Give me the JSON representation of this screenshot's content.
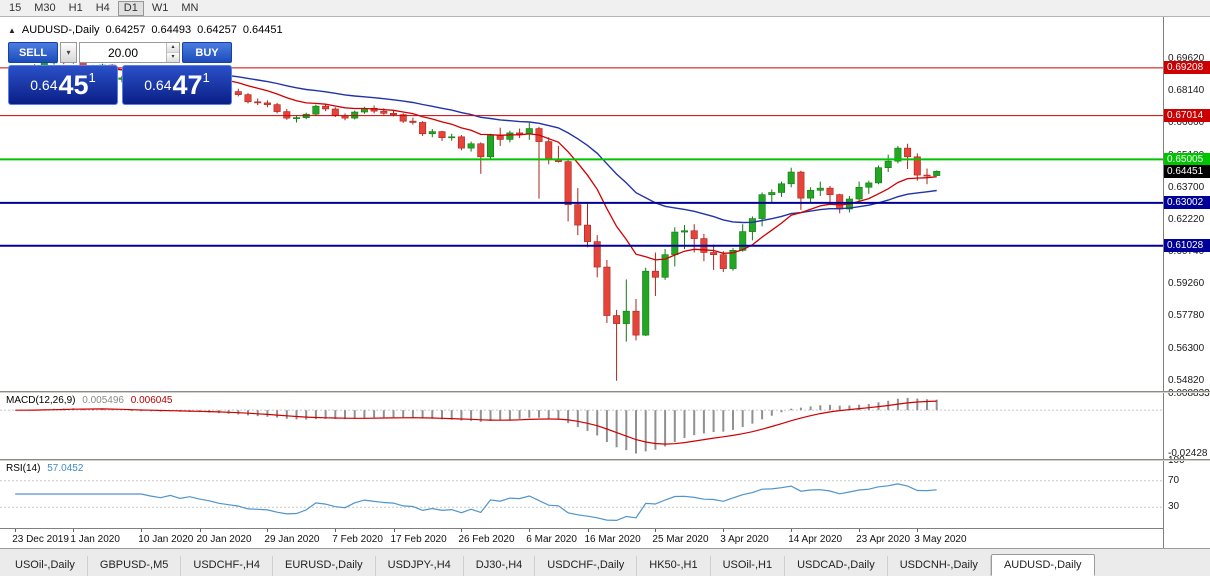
{
  "toolbar": {
    "timeframes": [
      "15",
      "M30",
      "H1",
      "H4",
      "D1",
      "W1",
      "MN"
    ],
    "active_timeframe": "D1"
  },
  "header": {
    "symbol": "AUDUSD-,Daily",
    "open": "0.64257",
    "high": "0.64493",
    "low": "0.64257",
    "close": "0.64451"
  },
  "icons": {
    "collapse_arrow": "▲",
    "dropdown_arrow": "▾",
    "spinner_up": "▴",
    "spinner_down": "▾"
  },
  "trade_panel": {
    "sell_label": "SELL",
    "buy_label": "BUY",
    "volume": "20.00",
    "sell_price": {
      "prefix": "0.64",
      "big": "45",
      "sup": "1"
    },
    "buy_price": {
      "prefix": "0.64",
      "big": "47",
      "sup": "1"
    }
  },
  "colors": {
    "bull": "#23a623",
    "bull_border": "#157815",
    "bear": "#e6443a",
    "bear_border": "#a8241c",
    "ma_fast": "#d00000",
    "ma_slow": "#2233aa",
    "macd_hist": "#909090",
    "macd_signal": "#d00000",
    "rsi_line": "#4f94cd",
    "badge_black": "#000000"
  },
  "chart_data": {
    "type": "candlestick",
    "symbol": "AUDUSD-",
    "timeframe": "Daily",
    "ylim": [
      0.5435,
      0.7155
    ],
    "price_axis_ticks": [
      "0.69620",
      "0.68140",
      "0.66660",
      "0.65180",
      "0.63700",
      "0.62220",
      "0.60740",
      "0.59260",
      "0.57780",
      "0.56300",
      "0.54820"
    ],
    "levels": [
      {
        "price": 0.69208,
        "label": "0.69208",
        "color": "#cc0000",
        "thickness": 1
      },
      {
        "price": 0.67014,
        "label": "0.67014",
        "color": "#cc0000",
        "thickness": 1
      },
      {
        "price": 0.65005,
        "label": "0.65005",
        "color": "#00c400",
        "thickness": 2
      },
      {
        "price": 0.63002,
        "label": "0.63002",
        "color": "#000096",
        "thickness": 2
      },
      {
        "price": 0.61028,
        "label": "0.61028",
        "color": "#000096",
        "thickness": 2
      }
    ],
    "current_price": {
      "value": 0.64451,
      "label": "0.64451"
    },
    "x_labels": [
      {
        "bar": 0,
        "label": "23 Dec 2019"
      },
      {
        "bar": 6,
        "label": "1 Jan 2020"
      },
      {
        "bar": 13,
        "label": "10 Jan 2020"
      },
      {
        "bar": 19,
        "label": "20 Jan 2020"
      },
      {
        "bar": 26,
        "label": "29 Jan 2020"
      },
      {
        "bar": 33,
        "label": "7 Feb 2020"
      },
      {
        "bar": 39,
        "label": "17 Feb 2020"
      },
      {
        "bar": 46,
        "label": "26 Feb 2020"
      },
      {
        "bar": 53,
        "label": "6 Mar 2020"
      },
      {
        "bar": 59,
        "label": "16 Mar 2020"
      },
      {
        "bar": 66,
        "label": "25 Mar 2020"
      },
      {
        "bar": 73,
        "label": "3 Apr 2020"
      },
      {
        "bar": 80,
        "label": "14 Apr 2020"
      },
      {
        "bar": 87,
        "label": "23 Apr 2020"
      },
      {
        "bar": 93,
        "label": "3 May 2020"
      }
    ],
    "candles": [
      [
        0.688,
        0.6912,
        0.687,
        0.6905
      ],
      [
        0.6905,
        0.692,
        0.6895,
        0.6912
      ],
      [
        0.6912,
        0.6938,
        0.6905,
        0.693
      ],
      [
        0.693,
        0.6952,
        0.692,
        0.6944
      ],
      [
        0.6944,
        0.696,
        0.6936,
        0.6954
      ],
      [
        0.6954,
        0.6962,
        0.6938,
        0.6948
      ],
      [
        0.6948,
        0.6956,
        0.694,
        0.695
      ],
      [
        0.695,
        0.6958,
        0.691,
        0.6918
      ],
      [
        0.6918,
        0.6935,
        0.6905,
        0.6928
      ],
      [
        0.6928,
        0.694,
        0.6912,
        0.6934
      ],
      [
        0.6934,
        0.6938,
        0.686,
        0.6868
      ],
      [
        0.6868,
        0.6885,
        0.6855,
        0.6875
      ],
      [
        0.6875,
        0.6882,
        0.6848,
        0.6858
      ],
      [
        0.6858,
        0.6902,
        0.6852,
        0.6896
      ],
      [
        0.6896,
        0.691,
        0.688,
        0.689
      ],
      [
        0.689,
        0.69,
        0.687,
        0.6878
      ],
      [
        0.6878,
        0.6896,
        0.6872,
        0.6892
      ],
      [
        0.6892,
        0.6898,
        0.6862,
        0.687
      ],
      [
        0.687,
        0.6886,
        0.6858,
        0.688
      ],
      [
        0.688,
        0.6886,
        0.6856,
        0.6862
      ],
      [
        0.6862,
        0.6874,
        0.684,
        0.6848
      ],
      [
        0.6848,
        0.6856,
        0.6818,
        0.6826
      ],
      [
        0.6826,
        0.6838,
        0.6805,
        0.6812
      ],
      [
        0.6812,
        0.6825,
        0.679,
        0.6798
      ],
      [
        0.6798,
        0.6805,
        0.6758,
        0.6765
      ],
      [
        0.6765,
        0.678,
        0.675,
        0.676
      ],
      [
        0.676,
        0.6772,
        0.674,
        0.6752
      ],
      [
        0.6752,
        0.676,
        0.6712,
        0.672
      ],
      [
        0.672,
        0.6732,
        0.6682,
        0.669
      ],
      [
        0.669,
        0.67,
        0.667,
        0.6692
      ],
      [
        0.6692,
        0.6715,
        0.6685,
        0.6708
      ],
      [
        0.6708,
        0.6752,
        0.6702,
        0.6745
      ],
      [
        0.6745,
        0.6755,
        0.6722,
        0.6732
      ],
      [
        0.6732,
        0.674,
        0.6695,
        0.6702
      ],
      [
        0.6702,
        0.6712,
        0.668,
        0.669
      ],
      [
        0.669,
        0.6725,
        0.6684,
        0.6718
      ],
      [
        0.6718,
        0.6742,
        0.671,
        0.6735
      ],
      [
        0.6735,
        0.6748,
        0.6712,
        0.6722
      ],
      [
        0.6722,
        0.6735,
        0.6705,
        0.6712
      ],
      [
        0.6712,
        0.6724,
        0.6698,
        0.6706
      ],
      [
        0.6706,
        0.6712,
        0.6668,
        0.6676
      ],
      [
        0.6676,
        0.6692,
        0.666,
        0.667
      ],
      [
        0.667,
        0.6676,
        0.6608,
        0.6618
      ],
      [
        0.6618,
        0.664,
        0.6602,
        0.6628
      ],
      [
        0.6628,
        0.6632,
        0.6585,
        0.66
      ],
      [
        0.66,
        0.6618,
        0.6586,
        0.6604
      ],
      [
        0.6604,
        0.6612,
        0.6542,
        0.6552
      ],
      [
        0.6552,
        0.6582,
        0.6536,
        0.6572
      ],
      [
        0.6572,
        0.6578,
        0.6434,
        0.6512
      ],
      [
        0.6512,
        0.6618,
        0.6498,
        0.661
      ],
      [
        0.661,
        0.6646,
        0.6562,
        0.6592
      ],
      [
        0.6592,
        0.6632,
        0.6578,
        0.6622
      ],
      [
        0.6622,
        0.6642,
        0.6598,
        0.6616
      ],
      [
        0.6616,
        0.6668,
        0.659,
        0.6642
      ],
      [
        0.6642,
        0.665,
        0.632,
        0.6582
      ],
      [
        0.6582,
        0.6602,
        0.6478,
        0.6502
      ],
      [
        0.6502,
        0.6562,
        0.6486,
        0.649
      ],
      [
        0.649,
        0.6502,
        0.6215,
        0.6292
      ],
      [
        0.6292,
        0.6368,
        0.6152,
        0.6198
      ],
      [
        0.6198,
        0.6302,
        0.6096,
        0.6122
      ],
      [
        0.6122,
        0.6152,
        0.5958,
        0.6005
      ],
      [
        0.6005,
        0.6038,
        0.5748,
        0.5782
      ],
      [
        0.5782,
        0.5808,
        0.5482,
        0.5745
      ],
      [
        0.5745,
        0.5948,
        0.5662,
        0.5802
      ],
      [
        0.5802,
        0.5858,
        0.5668,
        0.5692
      ],
      [
        0.5692,
        0.6002,
        0.5688,
        0.5986
      ],
      [
        0.5986,
        0.6072,
        0.5872,
        0.5958
      ],
      [
        0.5958,
        0.6088,
        0.5946,
        0.6062
      ],
      [
        0.6062,
        0.6188,
        0.6008,
        0.6166
      ],
      [
        0.6166,
        0.6198,
        0.6088,
        0.6172
      ],
      [
        0.6172,
        0.6202,
        0.6072,
        0.6136
      ],
      [
        0.6136,
        0.6158,
        0.6032,
        0.6072
      ],
      [
        0.6072,
        0.6108,
        0.5992,
        0.6062
      ],
      [
        0.6062,
        0.6078,
        0.5982,
        0.5998
      ],
      [
        0.5998,
        0.6092,
        0.5988,
        0.6082
      ],
      [
        0.6082,
        0.6202,
        0.6076,
        0.6168
      ],
      [
        0.6168,
        0.6238,
        0.6128,
        0.6228
      ],
      [
        0.6228,
        0.6348,
        0.6192,
        0.6338
      ],
      [
        0.6338,
        0.6362,
        0.6302,
        0.6348
      ],
      [
        0.6348,
        0.6398,
        0.6328,
        0.6388
      ],
      [
        0.6388,
        0.6462,
        0.6372,
        0.6442
      ],
      [
        0.6442,
        0.6448,
        0.6268,
        0.6322
      ],
      [
        0.6322,
        0.6372,
        0.6302,
        0.6358
      ],
      [
        0.6358,
        0.6398,
        0.6332,
        0.6368
      ],
      [
        0.6368,
        0.6378,
        0.6302,
        0.6338
      ],
      [
        0.6338,
        0.6342,
        0.6252,
        0.6272
      ],
      [
        0.6272,
        0.6332,
        0.6256,
        0.6318
      ],
      [
        0.6318,
        0.6398,
        0.6308,
        0.6372
      ],
      [
        0.6372,
        0.6402,
        0.6342,
        0.6392
      ],
      [
        0.6392,
        0.6472,
        0.6386,
        0.6462
      ],
      [
        0.6462,
        0.6522,
        0.6442,
        0.6492
      ],
      [
        0.6492,
        0.6562,
        0.6482,
        0.6552
      ],
      [
        0.6552,
        0.6572,
        0.6456,
        0.6512
      ],
      [
        0.6512,
        0.6528,
        0.6402,
        0.6428
      ],
      [
        0.6428,
        0.6458,
        0.6386,
        0.6426
      ],
      [
        0.64257,
        0.64493,
        0.64257,
        0.64451
      ]
    ],
    "indicators": {
      "ma_fast_period": 12,
      "ma_slow_period": 30,
      "macd": {
        "label": "MACD(12,26,9)",
        "fast": 12,
        "slow": 26,
        "signal": 9,
        "value": "0.005496",
        "signal_value": "0.006045",
        "axis_ticks": [
          "0.008833",
          "-0.02428"
        ],
        "ylim": [
          -0.027,
          0.0095
        ]
      },
      "rsi": {
        "label": "RSI(14)",
        "period": 14,
        "value": "57.0452",
        "axis_ticks": [
          100,
          70,
          30
        ],
        "levels": [
          70,
          30
        ],
        "ylim": [
          0,
          100
        ]
      }
    }
  },
  "tabs": {
    "items": [
      "USOil-,Daily",
      "GBPUSD-,M5",
      "USDCHF-,H4",
      "EURUSD-,Daily",
      "USDJPY-,H4",
      "DJ30-,H4",
      "USDCHF-,Daily",
      "HK50-,H1",
      "USOil-,H1",
      "USDCAD-,Daily",
      "USDCNH-,Daily",
      "AUDUSD-,Daily"
    ],
    "active": "AUDUSD-,Daily"
  }
}
